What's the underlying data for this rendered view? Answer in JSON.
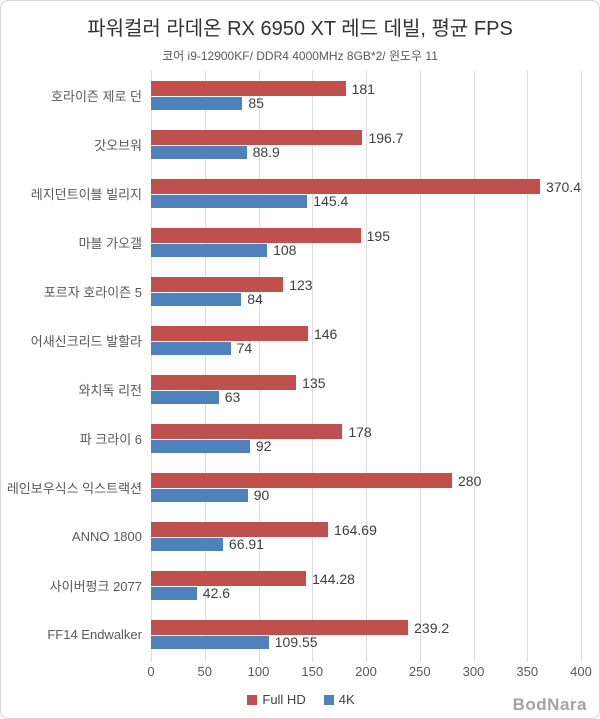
{
  "chart_data": {
    "type": "bar",
    "orientation": "horizontal",
    "title": "파워컬러 라데온 RX 6950 XT 레드 데빌, 평균 FPS",
    "subtitle": "코어 i9-12900KF/ DDR4 4000MHz 8GB*2/ 윈도우 11",
    "categories": [
      "호라이즌 제로 던",
      "갓오브워",
      "레지던트이블 빌리지",
      "마블 가오갤",
      "포르자 호라이즌 5",
      "어새신크리드 발할라",
      "와치독 리전",
      "파 크라이 6",
      "레인보우식스 익스트랙션",
      "ANNO 1800",
      "사이버펑크 2077",
      "FF14 Endwalker"
    ],
    "series": [
      {
        "name": "Full HD",
        "color": "#C0504D",
        "values": [
          181,
          196.7,
          370.4,
          195,
          123,
          146,
          135,
          178,
          280,
          164.69,
          144.28,
          239.2
        ]
      },
      {
        "name": "4K",
        "color": "#4F81BD",
        "values": [
          85,
          88.9,
          145.4,
          108,
          84,
          74,
          63,
          92,
          90,
          66.91,
          42.6,
          109.55
        ]
      }
    ],
    "xlim": [
      0,
      400
    ],
    "xticks": [
      0,
      50,
      100,
      150,
      200,
      250,
      300,
      350,
      400
    ],
    "grid": true,
    "gridline_color": "#dcdcdc",
    "legend_position": "bottom"
  },
  "footer": {
    "logo": "BodNara"
  }
}
